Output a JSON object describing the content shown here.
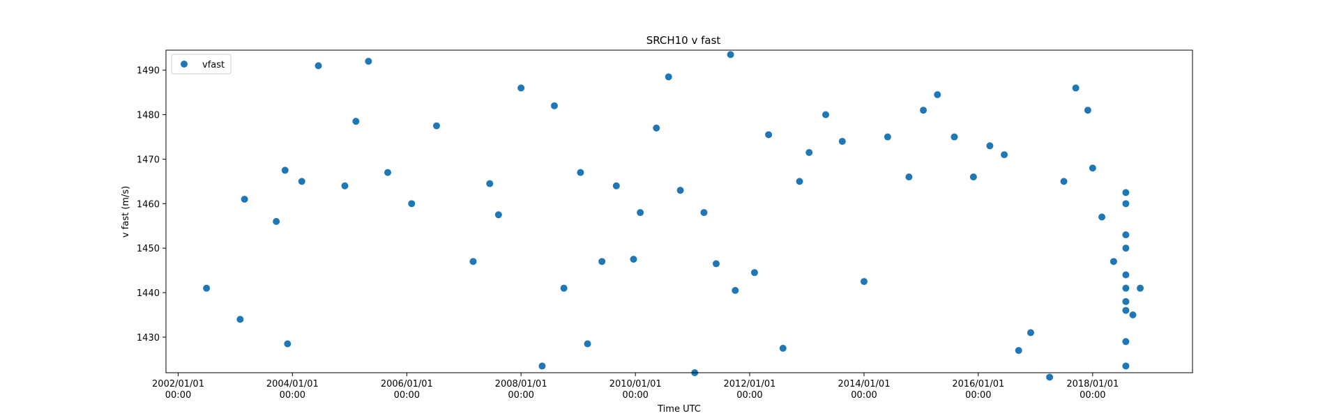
{
  "chart_data": {
    "type": "scatter",
    "title": "SRCH10 v fast",
    "xlabel": "Time UTC",
    "ylabel": "v fast (m/s)",
    "xlim": [
      "2001-10-15",
      "2019-10-01"
    ],
    "ylim": [
      1422,
      1494.5
    ],
    "grid": false,
    "legend": "top-left",
    "x_ticks": [
      {
        "date": "2002-01-01",
        "line1": "2002/01/01",
        "line2": "00:00"
      },
      {
        "date": "2004-01-01",
        "line1": "2004/01/01",
        "line2": "00:00"
      },
      {
        "date": "2006-01-01",
        "line1": "2006/01/01",
        "line2": "00:00"
      },
      {
        "date": "2008-01-01",
        "line1": "2008/01/01",
        "line2": "00:00"
      },
      {
        "date": "2010-01-01",
        "line1": "2010/01/01",
        "line2": "00:00"
      },
      {
        "date": "2012-01-01",
        "line1": "2012/01/01",
        "line2": "00:00"
      },
      {
        "date": "2014-01-01",
        "line1": "2014/01/01",
        "line2": "00:00"
      },
      {
        "date": "2016-01-01",
        "line1": "2016/01/01",
        "line2": "00:00"
      },
      {
        "date": "2018-01-01",
        "line1": "2018/01/01",
        "line2": "00:00"
      }
    ],
    "y_ticks": [
      1430,
      1440,
      1450,
      1460,
      1470,
      1480,
      1490
    ],
    "series": [
      {
        "name": "vfast",
        "color": "#1f77b4",
        "x": [
          "2002-07-01",
          "2003-02-01",
          "2003-03-01",
          "2003-09-20",
          "2003-11-15",
          "2003-12-01",
          "2004-03-01",
          "2004-06-15",
          "2004-12-01",
          "2005-02-10",
          "2005-05-01",
          "2005-09-01",
          "2006-02-01",
          "2006-07-10",
          "2007-03-01",
          "2007-06-15",
          "2007-08-10",
          "2008-01-01",
          "2008-05-15",
          "2008-08-01",
          "2008-10-01",
          "2009-01-15",
          "2009-03-01",
          "2009-06-01",
          "2009-09-01",
          "2009-12-20",
          "2010-02-01",
          "2010-05-15",
          "2010-08-01",
          "2010-10-15",
          "2011-01-15",
          "2011-03-15",
          "2011-06-01",
          "2011-09-01",
          "2011-10-01",
          "2012-02-01",
          "2012-05-01",
          "2012-08-01",
          "2012-11-15",
          "2013-01-15",
          "2013-05-01",
          "2013-08-15",
          "2014-01-01",
          "2014-06-01",
          "2014-10-15",
          "2015-01-15",
          "2015-04-15",
          "2015-08-01",
          "2015-12-01",
          "2016-03-15",
          "2016-06-15",
          "2016-09-15",
          "2016-12-01",
          "2017-04-01",
          "2017-07-01",
          "2017-09-15",
          "2017-12-01",
          "2018-01-01",
          "2018-03-01",
          "2018-05-15",
          "2018-08-01",
          "2018-08-01",
          "2018-08-01",
          "2018-08-01",
          "2018-08-01",
          "2018-08-01",
          "2018-08-01",
          "2018-08-01",
          "2018-08-01",
          "2018-08-01",
          "2018-09-15",
          "2018-11-01"
        ],
        "y": [
          1441,
          1434,
          1461,
          1456,
          1467.5,
          1428.5,
          1465,
          1491,
          1464,
          1478.5,
          1492,
          1467,
          1460,
          1477.5,
          1447,
          1464.5,
          1457.5,
          1486,
          1423.5,
          1482,
          1441,
          1467,
          1428.5,
          1447,
          1464,
          1447.5,
          1458,
          1477,
          1488.5,
          1463,
          1422,
          1458,
          1446.5,
          1493.5,
          1440.5,
          1444.5,
          1475.5,
          1427.5,
          1465,
          1471.5,
          1480,
          1474,
          1442.5,
          1475,
          1466,
          1481,
          1484.5,
          1475,
          1466,
          1473,
          1471,
          1427,
          1431,
          1421,
          1465,
          1486,
          1481,
          1468,
          1457,
          1447,
          1441,
          1423.5,
          1438,
          1453,
          1462.5,
          1444,
          1436,
          1450,
          1429,
          1460,
          1435,
          1441
        ]
      }
    ]
  }
}
